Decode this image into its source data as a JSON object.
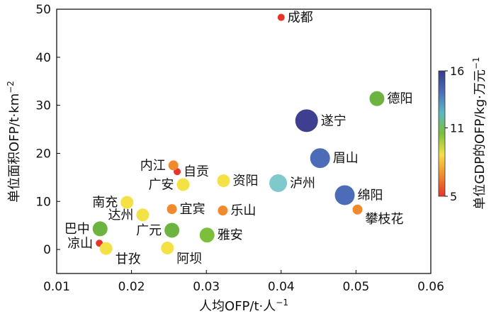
{
  "chart_data": {
    "type": "scatter",
    "xlabel": "人均OFP/t·人",
    "xlabel_sup": "−1",
    "ylabel": "单位面积OFP/t·km",
    "ylabel_sup": "−2",
    "xlim": [
      0.01,
      0.06
    ],
    "ylim": [
      -5,
      50
    ],
    "xticks": [
      0.01,
      0.02,
      0.03,
      0.04,
      0.05,
      0.06
    ],
    "yticks": [
      0,
      10,
      20,
      30,
      40,
      50
    ],
    "xtick_labels": [
      "0.01",
      "0.02",
      "0.03",
      "0.04",
      "0.05",
      "0.06"
    ],
    "ytick_labels": [
      "0",
      "10",
      "20",
      "30",
      "40",
      "50"
    ],
    "grid": false,
    "colorbar": {
      "title": "单位GDP的OFP/kg·万元",
      "title_sup": "−1",
      "min": 5,
      "max": 16,
      "ticks": [
        5,
        11,
        16
      ],
      "tick_labels": [
        "5",
        "11",
        "16"
      ],
      "colors": [
        "#e8332c",
        "#f08a2e",
        "#f3e146",
        "#7bbf3a",
        "#5cb8c2",
        "#4d6cb8",
        "#3a3a8c"
      ]
    },
    "points": [
      {
        "name": "成都",
        "x": 0.04,
        "y": 48.3,
        "z": 5.0,
        "color": "#e8332c",
        "label_pos": "right"
      },
      {
        "name": "德阳",
        "x": 0.0528,
        "y": 31.4,
        "z": 10.5,
        "color": "#6cb33f",
        "label_pos": "right"
      },
      {
        "name": "遂宁",
        "x": 0.0434,
        "y": 26.8,
        "z": 16.0,
        "color": "#3f3f8f",
        "label_pos": "right"
      },
      {
        "name": "眉山",
        "x": 0.0452,
        "y": 19.0,
        "z": 14.0,
        "color": "#4d6cb8",
        "label_pos": "right"
      },
      {
        "name": "泸州",
        "x": 0.0396,
        "y": 13.8,
        "z": 12.5,
        "color": "#7ec9cc",
        "label_pos": "right"
      },
      {
        "name": "绵阳",
        "x": 0.0485,
        "y": 11.3,
        "z": 14.0,
        "color": "#4d6cb8",
        "label_pos": "right"
      },
      {
        "name": "攀枝花",
        "x": 0.0502,
        "y": 8.3,
        "z": 7.0,
        "color": "#f08a2e",
        "label_pos": "right-below"
      },
      {
        "name": "内江",
        "x": 0.0256,
        "y": 17.5,
        "z": 7.0,
        "color": "#f08a2e",
        "label_pos": "left"
      },
      {
        "name": "自贡",
        "x": 0.0261,
        "y": 16.2,
        "z": 5.0,
        "color": "#e8332c",
        "label_pos": "right"
      },
      {
        "name": "广安",
        "x": 0.0269,
        "y": 13.5,
        "z": 9.0,
        "color": "#f3e146",
        "label_pos": "left"
      },
      {
        "name": "资阳",
        "x": 0.0323,
        "y": 14.3,
        "z": 9.0,
        "color": "#f3e146",
        "label_pos": "right"
      },
      {
        "name": "南充",
        "x": 0.0194,
        "y": 9.8,
        "z": 9.0,
        "color": "#f3e146",
        "label_pos": "left"
      },
      {
        "name": "宜宾",
        "x": 0.0254,
        "y": 8.4,
        "z": 7.0,
        "color": "#f08a2e",
        "label_pos": "right"
      },
      {
        "name": "乐山",
        "x": 0.0322,
        "y": 8.1,
        "z": 7.0,
        "color": "#f08a2e",
        "label_pos": "right"
      },
      {
        "name": "达州",
        "x": 0.0215,
        "y": 7.2,
        "z": 9.0,
        "color": "#f3e146",
        "label_pos": "left"
      },
      {
        "name": "巴中",
        "x": 0.0158,
        "y": 4.3,
        "z": 10.5,
        "color": "#6cb33f",
        "label_pos": "left"
      },
      {
        "name": "广元",
        "x": 0.0254,
        "y": 4.0,
        "z": 10.5,
        "color": "#6cb33f",
        "label_pos": "left"
      },
      {
        "name": "雅安",
        "x": 0.0301,
        "y": 3.0,
        "z": 10.5,
        "color": "#7bbf3a",
        "label_pos": "right"
      },
      {
        "name": "凉山",
        "x": 0.0157,
        "y": 1.3,
        "z": 5.0,
        "color": "#e8332c",
        "label_pos": "left"
      },
      {
        "name": "甘孜",
        "x": 0.0166,
        "y": 0.2,
        "z": 9.0,
        "color": "#f3e146",
        "label_pos": "right-below"
      },
      {
        "name": "阿坝",
        "x": 0.0248,
        "y": 0.3,
        "z": 9.0,
        "color": "#f3e146",
        "label_pos": "right-below"
      }
    ]
  }
}
